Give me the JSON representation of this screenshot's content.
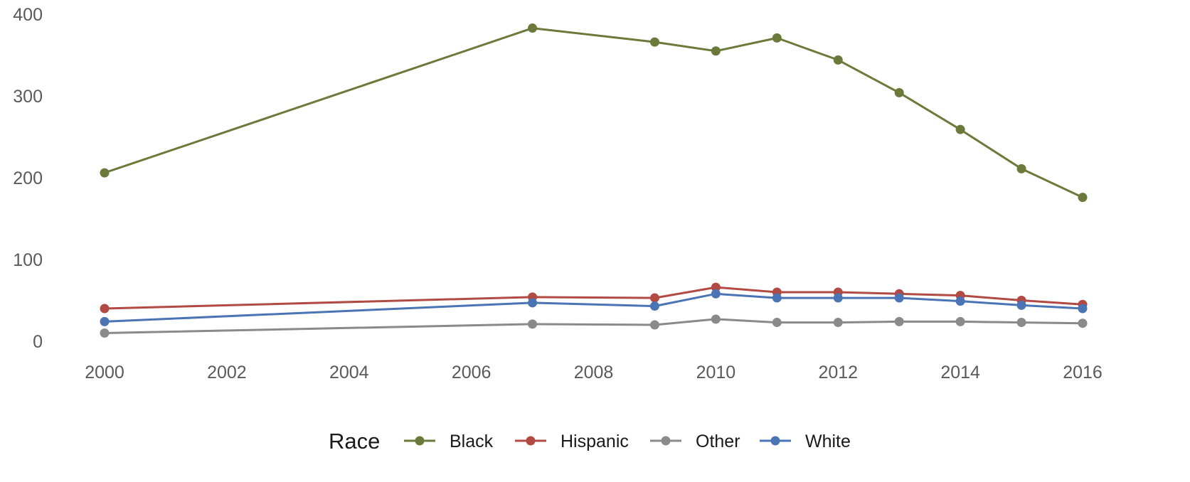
{
  "chart_data": {
    "type": "line",
    "title": "",
    "xlabel": "",
    "ylabel": "",
    "xlim": [
      2000,
      2016
    ],
    "ylim": [
      0,
      400
    ],
    "x_ticks": [
      2000,
      2002,
      2004,
      2006,
      2008,
      2010,
      2012,
      2014,
      2016
    ],
    "y_ticks": [
      0,
      100,
      200,
      300,
      400
    ],
    "x_tick_labels": [
      "2000",
      "2002",
      "2004",
      "2006",
      "2008",
      "2010",
      "2012",
      "2014",
      "2016"
    ],
    "y_tick_labels": [
      "0",
      "100",
      "200",
      "300",
      "400"
    ],
    "grid": false,
    "legend": {
      "title": "Race",
      "placement": "bottom"
    },
    "x": [
      2000,
      2007,
      2009,
      2010,
      2011,
      2012,
      2013,
      2014,
      2015,
      2016
    ],
    "series": [
      {
        "name": "Black",
        "color": "#6b7a3a",
        "values": [
          206,
          383,
          366,
          355,
          371,
          344,
          304,
          259,
          211,
          176
        ]
      },
      {
        "name": "Hispanic",
        "color": "#b24a44",
        "values": [
          40,
          54,
          53,
          66,
          60,
          60,
          58,
          56,
          50,
          45
        ]
      },
      {
        "name": "Other",
        "color": "#8a8a8a",
        "values": [
          10,
          21,
          20,
          27,
          23,
          23,
          24,
          24,
          23,
          22
        ]
      },
      {
        "name": "White",
        "color": "#4a74b4",
        "values": [
          24,
          47,
          43,
          58,
          53,
          53,
          53,
          49,
          44,
          40
        ]
      }
    ]
  }
}
